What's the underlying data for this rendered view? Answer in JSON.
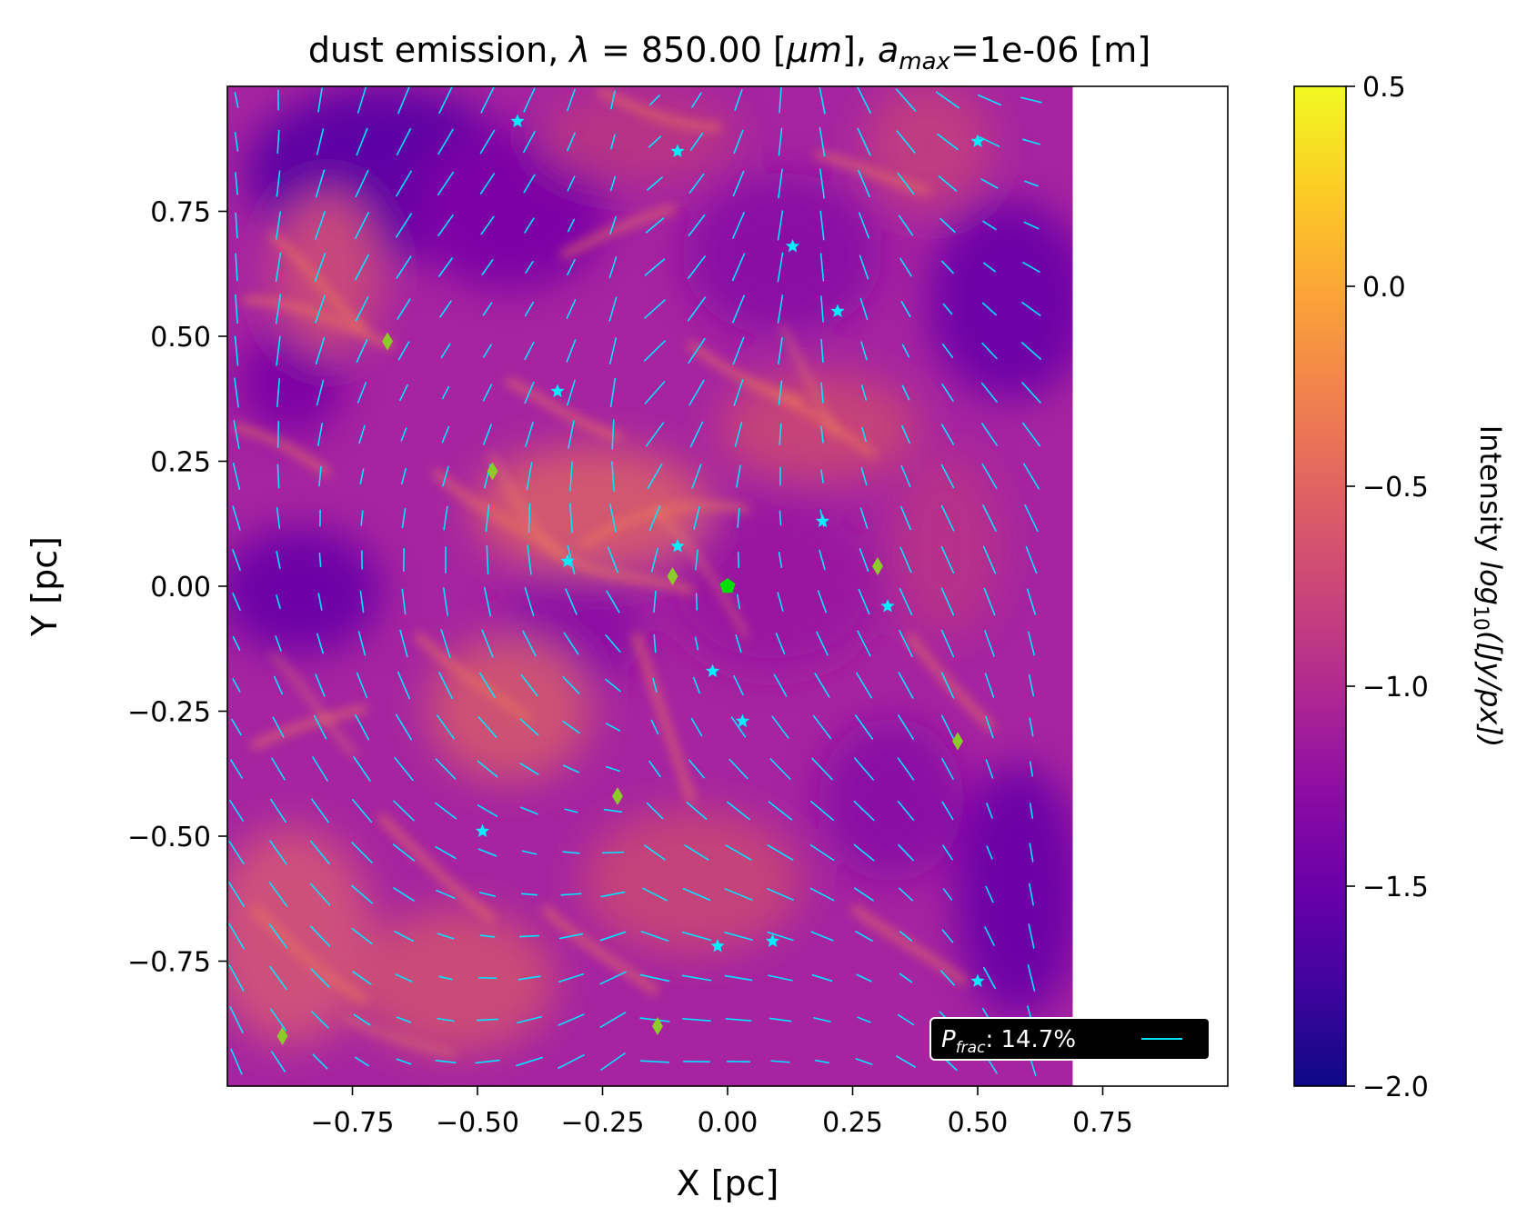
{
  "chart_data": {
    "type": "heatmap",
    "title": "dust emission, λ = 850.00 [μm], a_max=1e-06 [m]",
    "title_parts": {
      "prefix": "dust emission, ",
      "lambda_symbol": "λ",
      "equals_value": " = 850.00 [",
      "mu_unit": "μm",
      "after_unit": "], ",
      "a_symbol": "a",
      "a_subscript": "max",
      "a_value": "=1e-06 [m]"
    },
    "xlabel": "X [pc]",
    "ylabel": "Y [pc]",
    "xlim": [
      -1.0,
      1.0
    ],
    "ylim": [
      -1.0,
      1.0
    ],
    "map_extent_x": [
      -1.0,
      0.69
    ],
    "x_ticks": [
      "−0.75",
      "−0.50",
      "−0.25",
      "0.00",
      "0.25",
      "0.50",
      "0.75"
    ],
    "x_tick_values": [
      -0.75,
      -0.5,
      -0.25,
      0.0,
      0.25,
      0.5,
      0.75
    ],
    "y_ticks": [
      "0.75",
      "0.50",
      "0.25",
      "0.00",
      "−0.25",
      "−0.50",
      "−0.75"
    ],
    "y_tick_values": [
      0.75,
      0.5,
      0.25,
      0.0,
      -0.25,
      -0.5,
      -0.75
    ],
    "colorbar": {
      "label_prefix": "Intensity ",
      "label_math": "log",
      "label_sub": "10",
      "label_suffix": "([Jy/px])",
      "range": [
        -2.0,
        0.5
      ],
      "ticks": [
        "0.5",
        "0.0",
        "−0.5",
        "−1.0",
        "−1.5",
        "−2.0"
      ],
      "tick_values": [
        0.5,
        0.0,
        -0.5,
        -1.0,
        -1.5,
        -2.0
      ],
      "colormap": "plasma"
    },
    "legend": {
      "symbol": "P",
      "subscript": "frac",
      "value": ": 14.7%",
      "placement": "lower-right",
      "line_color": "#00e5ff"
    },
    "star_markers": [
      [
        -0.42,
        0.93
      ],
      [
        -0.1,
        0.87
      ],
      [
        0.5,
        0.89
      ],
      [
        0.13,
        0.68
      ],
      [
        0.22,
        0.55
      ],
      [
        -0.34,
        0.39
      ],
      [
        0.19,
        0.13
      ],
      [
        -0.32,
        0.05
      ],
      [
        -0.1,
        0.08
      ],
      [
        0.32,
        -0.04
      ],
      [
        -0.03,
        -0.17
      ],
      [
        0.03,
        -0.27
      ],
      [
        -0.49,
        -0.49
      ],
      [
        -0.02,
        -0.72
      ],
      [
        0.09,
        -0.71
      ],
      [
        0.5,
        -0.79
      ]
    ],
    "diamond_markers": [
      [
        -0.68,
        0.49
      ],
      [
        -0.47,
        0.23
      ],
      [
        -0.11,
        0.02
      ],
      [
        0.3,
        0.04
      ],
      [
        0.46,
        -0.31
      ],
      [
        -0.22,
        -0.42
      ],
      [
        -0.14,
        -0.88
      ],
      [
        -0.89,
        -0.9
      ]
    ],
    "central_marker": [
      0.0,
      0.0
    ],
    "colors": {
      "vectors": "#00e5ff",
      "stars": "#00f0ff",
      "diamonds": "#8ccb2a",
      "central": "#00e000"
    }
  }
}
